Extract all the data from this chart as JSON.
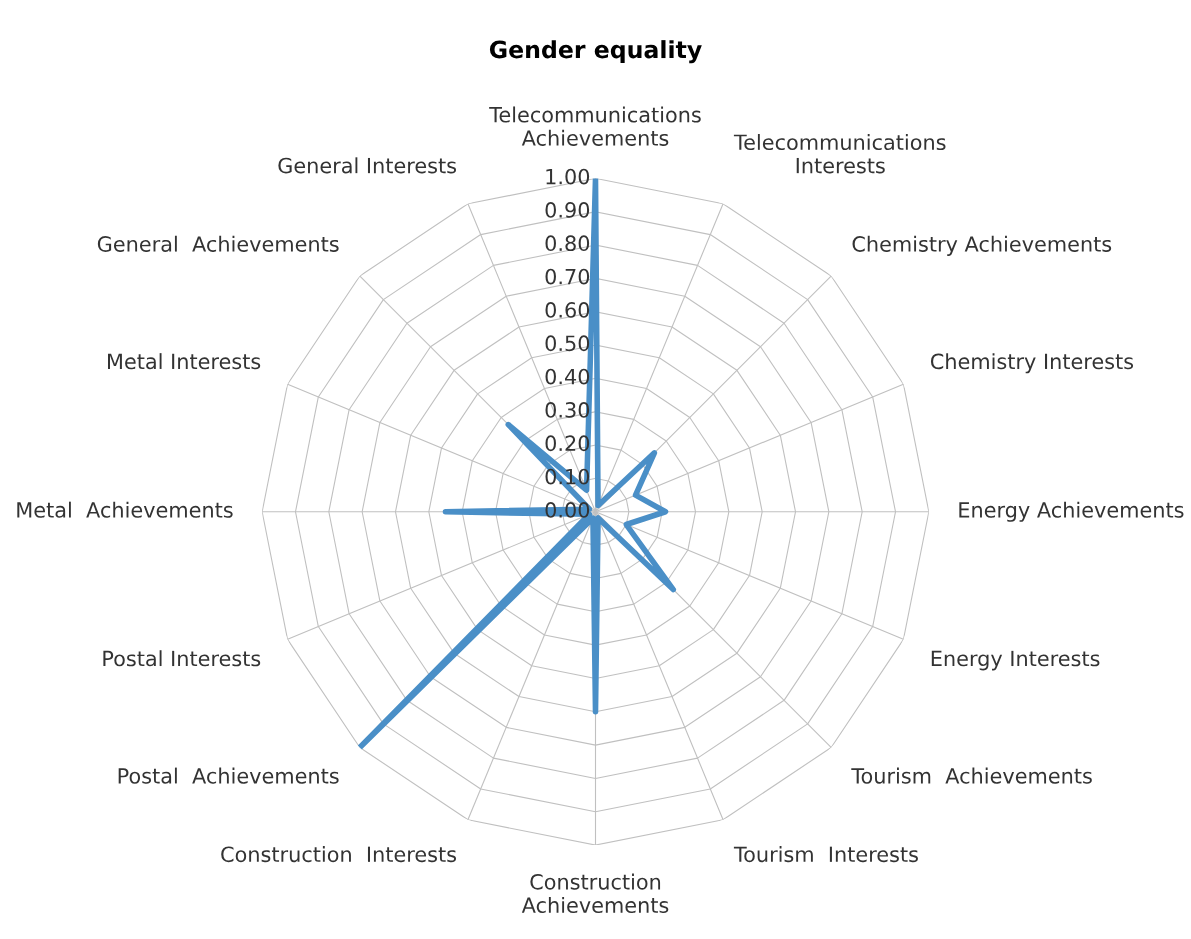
{
  "chart_data": {
    "type": "radar",
    "title": "Gender equality",
    "categories": [
      "Telecommunications\nAchievements",
      "Telecommunications\nInterests",
      "Chemistry Achievements",
      "Chemistry Interests",
      "Energy Achievements",
      "Energy Interests",
      "Tourism  Achievements",
      "Tourism  Interests",
      "Construction\nAchievements",
      "Construction  Interests",
      "Postal  Achievements",
      "Postal Interests",
      "Metal  Achievements",
      "Metal Interests",
      "General  Achievements",
      "General Interests"
    ],
    "series": [
      {
        "color": "#4a8fc7",
        "values": [
          1.0,
          0.02,
          0.25,
          0.13,
          0.21,
          0.1,
          0.33,
          0.02,
          0.6,
          0.02,
          1.0,
          0.02,
          0.45,
          0.02,
          0.37,
          0.07
        ]
      }
    ],
    "ylim": [
      0,
      1.0
    ],
    "yticks": [
      {
        "value": 0,
        "label": "0.00"
      },
      {
        "value": 0.1,
        "label": "0.10"
      },
      {
        "value": 0.2,
        "label": "0.20"
      },
      {
        "value": 0.3,
        "label": "0.30"
      },
      {
        "value": 0.4,
        "label": "0.40"
      },
      {
        "value": 0.5,
        "label": "0.50"
      },
      {
        "value": 0.6,
        "label": "0.60"
      },
      {
        "value": 0.7,
        "label": "0.70"
      },
      {
        "value": 0.8,
        "label": "0.80"
      },
      {
        "value": 0.9,
        "label": "0.90"
      },
      {
        "value": 1.0,
        "label": "1.00"
      }
    ],
    "grid": true,
    "marker": "none",
    "line_style": "solid"
  }
}
